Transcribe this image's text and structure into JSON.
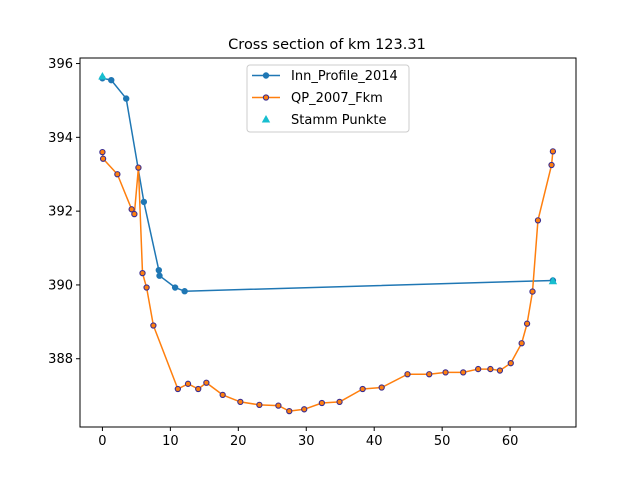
{
  "chart_data": {
    "type": "line",
    "title": "Cross section of km 123.31",
    "xlabel": "",
    "ylabel": "",
    "xlim": [
      -3.3,
      69.7
    ],
    "ylim": [
      386.15,
      396.15
    ],
    "xticks": [
      0,
      10,
      20,
      30,
      40,
      50,
      60
    ],
    "yticks": [
      388,
      390,
      392,
      394,
      396
    ],
    "grid": false,
    "legend_position": "top-center",
    "series": [
      {
        "name": "Inn_Profile_2014",
        "kind": "line-markers",
        "line_color": "#1f77b4",
        "marker_color": "#1f77b4",
        "x": [
          0,
          1.3,
          3.5,
          6.1,
          8.3,
          8.4,
          10.7,
          12.1,
          66.3
        ],
        "y": [
          395.6,
          395.55,
          395.05,
          392.25,
          390.4,
          390.25,
          389.93,
          389.83,
          390.12
        ]
      },
      {
        "name": "QP_2007_Fkm",
        "kind": "line-markers",
        "line_color": "#ff7f0e",
        "marker_color": "#ff7f0e",
        "marker_edge": "#3b2d8f",
        "x": [
          0,
          0.1,
          2.2,
          4.3,
          4.7,
          5.3,
          5.9,
          6.5,
          7.5,
          11.1,
          12.6,
          14.1,
          15.3,
          17.7,
          20.3,
          23.1,
          25.9,
          27.5,
          29.7,
          32.3,
          34.9,
          38.3,
          41.1,
          44.9,
          48.1,
          50.5,
          53.1,
          55.3,
          57.1,
          58.5,
          60.1,
          61.7,
          62.5,
          63.3,
          64.1,
          66.1,
          66.3
        ],
        "y": [
          393.6,
          393.42,
          393.0,
          392.05,
          391.92,
          393.18,
          390.32,
          389.93,
          388.9,
          387.18,
          387.32,
          387.18,
          387.35,
          387.02,
          386.83,
          386.75,
          386.73,
          386.58,
          386.63,
          386.8,
          386.83,
          387.18,
          387.22,
          387.58,
          387.58,
          387.63,
          387.63,
          387.72,
          387.72,
          387.68,
          387.88,
          388.42,
          388.95,
          389.82,
          391.75,
          393.25,
          393.62
        ]
      },
      {
        "name": "Stamm Punkte",
        "kind": "scatter",
        "marker": "triangle",
        "marker_color": "#17becf",
        "x": [
          0,
          66.3
        ],
        "y": [
          395.65,
          390.1
        ]
      }
    ]
  }
}
